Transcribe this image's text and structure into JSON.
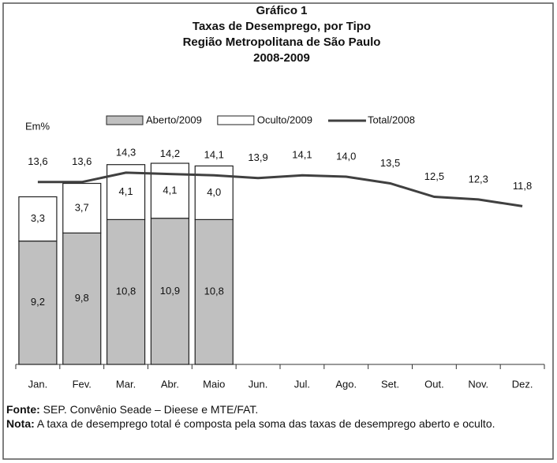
{
  "chart_data": {
    "type": "bar",
    "stacked": true,
    "title": [
      "Gráfico 1",
      "Taxas de Desemprego, por Tipo",
      "Região Metropolitana de São Paulo",
      "2008-2009"
    ],
    "unit_label": "Em%",
    "categories": [
      "Jan.",
      "Fev.",
      "Mar.",
      "Abr.",
      "Maio",
      "Jun.",
      "Jul.",
      "Ago.",
      "Set.",
      "Out.",
      "Nov.",
      "Dez."
    ],
    "ylim": [
      0,
      17
    ],
    "series": [
      {
        "name": "Aberto/2009",
        "type": "bar",
        "color": "#c0c0c0",
        "values": [
          9.2,
          9.8,
          10.8,
          10.9,
          10.8,
          null,
          null,
          null,
          null,
          null,
          null,
          null
        ],
        "value_labels": [
          "9,2",
          "9,8",
          "10,8",
          "10,9",
          "10,8",
          null,
          null,
          null,
          null,
          null,
          null,
          null
        ]
      },
      {
        "name": "Oculto/2009",
        "type": "bar",
        "color": "#ffffff",
        "values": [
          3.3,
          3.7,
          4.1,
          4.1,
          4.0,
          null,
          null,
          null,
          null,
          null,
          null,
          null
        ],
        "value_labels": [
          "3,3",
          "3,7",
          "4,1",
          "4,1",
          "4,0",
          null,
          null,
          null,
          null,
          null,
          null,
          null
        ]
      },
      {
        "name": "Total/2008",
        "type": "line",
        "color": "#404040",
        "values": [
          13.6,
          13.6,
          14.3,
          14.2,
          14.1,
          13.9,
          14.1,
          14.0,
          13.5,
          12.5,
          12.3,
          11.8
        ],
        "value_labels": [
          "13,6",
          "13,6",
          "14,3",
          "14,2",
          "14,1",
          "13,9",
          "14,1",
          "14,0",
          "13,5",
          "12,5",
          "12,3",
          "11,8"
        ]
      }
    ],
    "source_label": "Fonte:",
    "source": "SEP. Convênio Seade – Dieese e MTE/FAT.",
    "note_label": "Nota:",
    "note": "A taxa de desemprego total é composta pela soma das taxas de desemprego aberto e oculto."
  }
}
